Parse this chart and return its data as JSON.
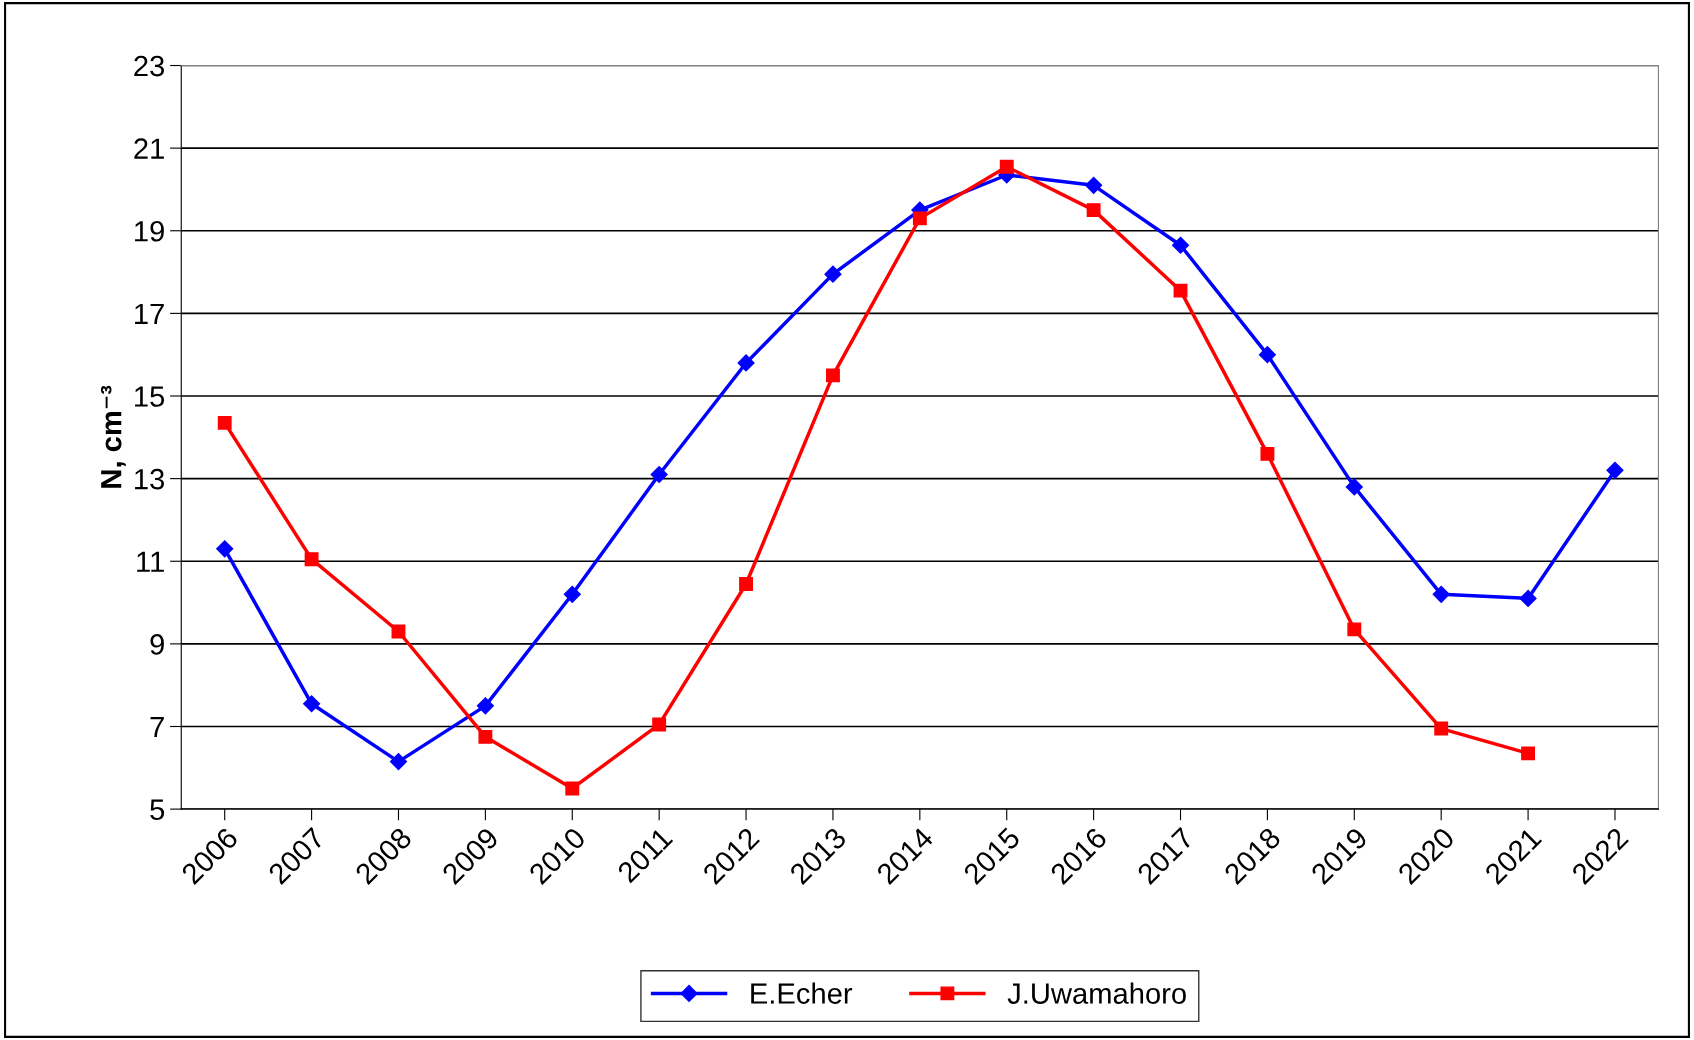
{
  "chart_data": {
    "type": "line",
    "ylabel": "N, cm⁻³",
    "categories": [
      "2006",
      "2007",
      "2008",
      "2009",
      "2010",
      "2011",
      "2012",
      "2013",
      "2014",
      "2015",
      "2016",
      "2017",
      "2018",
      "2019",
      "2020",
      "2021",
      "2022"
    ],
    "series": [
      {
        "name": "E.Echer",
        "color": "#0000ff",
        "marker": "diamond",
        "values": [
          11.3,
          7.55,
          6.15,
          7.5,
          10.2,
          13.1,
          15.8,
          17.95,
          19.5,
          20.35,
          20.1,
          18.65,
          16.0,
          12.8,
          10.2,
          10.1,
          13.2
        ]
      },
      {
        "name": "J.Uwamahoro",
        "color": "#ff0000",
        "marker": "square",
        "values": [
          14.35,
          11.05,
          9.3,
          6.75,
          5.5,
          7.05,
          10.45,
          15.5,
          19.3,
          20.55,
          19.5,
          17.55,
          13.6,
          9.35,
          6.95,
          6.35,
          null
        ]
      }
    ],
    "ylim": [
      5,
      23
    ],
    "yticks": [
      5,
      7,
      9,
      11,
      13,
      15,
      17,
      19,
      21,
      23
    ],
    "grid": "y",
    "legend": "bottom",
    "line_style": "solid"
  }
}
